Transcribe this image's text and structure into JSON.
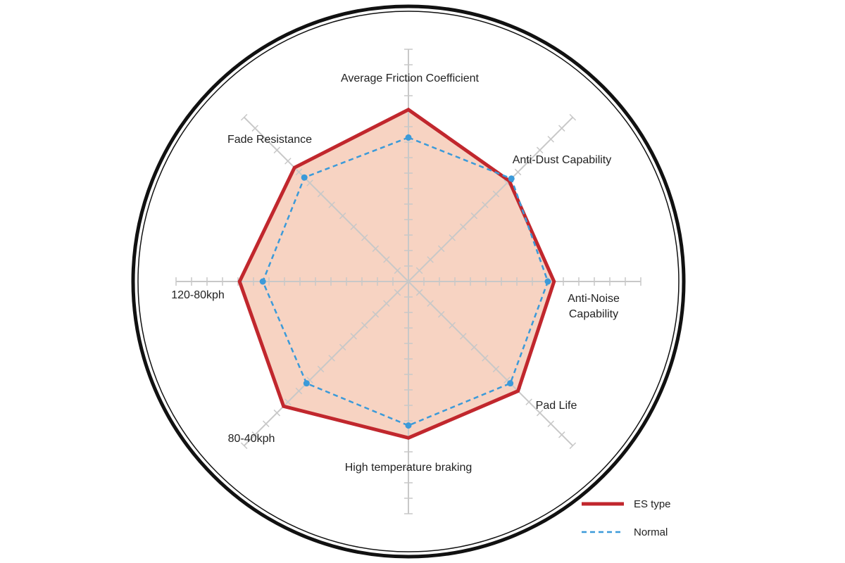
{
  "chart_data": {
    "type": "radar",
    "categories": [
      "Average Friction Coefficient",
      "Anti-Dust Capability",
      "Anti-Noise Capability",
      "Pad Life",
      "High temperature braking",
      "80-40kph",
      "120-80kph",
      "Fade Resistance"
    ],
    "rlim": [
      0,
      15
    ],
    "rticks": [
      1,
      2,
      3,
      4,
      5,
      6,
      7,
      8,
      9,
      10,
      11,
      12,
      13,
      14,
      15
    ],
    "series": [
      {
        "name": "ES type",
        "color": "#c1272d",
        "fill": "#f7d3c2",
        "values": [
          11.1,
          9.2,
          9.4,
          10,
          10.1,
          11.4,
          10.9,
          10.4
        ]
      },
      {
        "name": "Normal",
        "color": "#3b9ad9",
        "values": [
          9.3,
          9.4,
          9,
          9.3,
          9.3,
          9.3,
          9.4,
          9.5
        ]
      }
    ]
  }
}
